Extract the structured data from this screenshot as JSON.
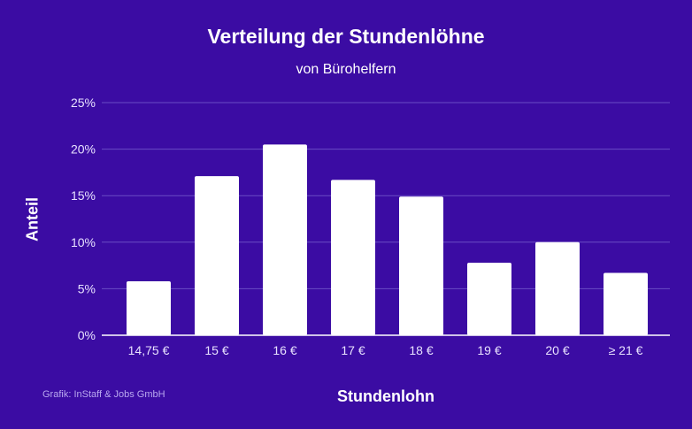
{
  "chart_data": {
    "type": "bar",
    "title": "Verteilung der Stundenlöhne",
    "subtitle": "von Bürohelfern",
    "xlabel": "Stundenlohn",
    "ylabel": "Anteil",
    "categories": [
      "14,75 €",
      "15 €",
      "16 €",
      "17 €",
      "18 €",
      "19 €",
      "20 €",
      "≥ 21 €"
    ],
    "values": [
      5.8,
      17.1,
      20.5,
      16.7,
      14.9,
      7.8,
      10.0,
      6.7
    ],
    "ylim": [
      0,
      25
    ],
    "yticks": [
      0,
      5,
      10,
      15,
      20,
      25
    ],
    "ytick_labels": [
      "0%",
      "5%",
      "10%",
      "15%",
      "20%",
      "25%"
    ],
    "grid": true,
    "colors": {
      "background": "#3b0ca3",
      "bar": "#ffffff",
      "grid": "#6a4cc4"
    }
  },
  "credit": "Grafik: InStaff & Jobs GmbH"
}
